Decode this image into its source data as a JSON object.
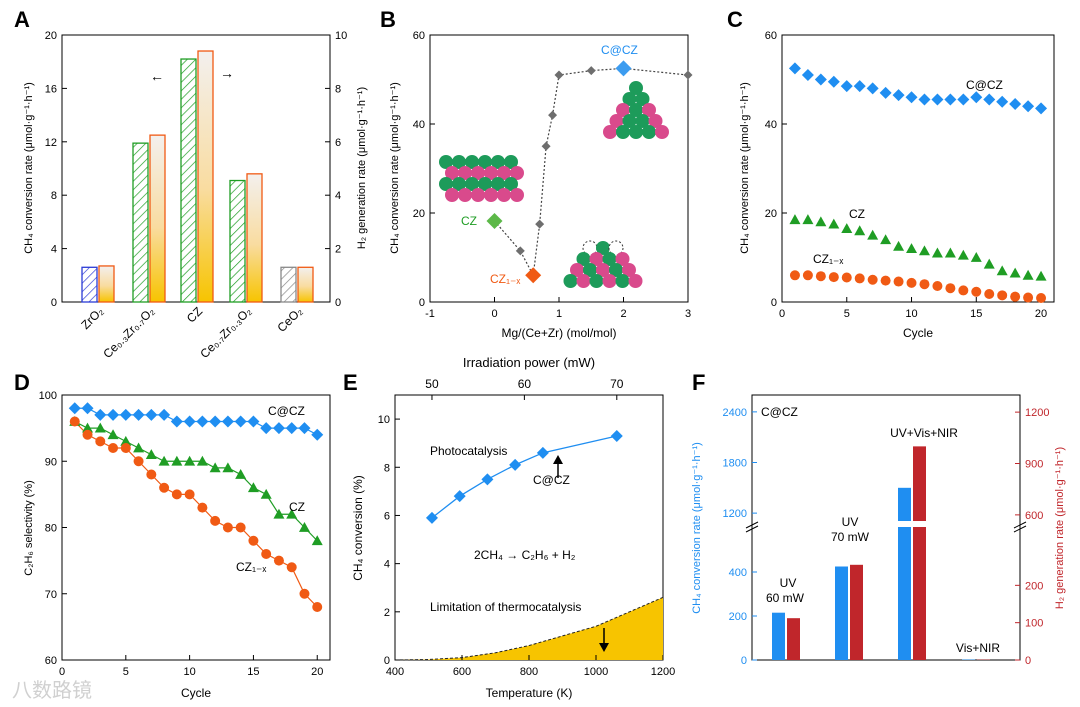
{
  "watermark": "八数路镜",
  "colors": {
    "blue": "#1f8ef1",
    "green": "#1f9d24",
    "orange": "#f05a14",
    "gray": "#6e6e6e",
    "darkred": "#c0262b",
    "gold": "#f7c400",
    "pink": "#d94a8c",
    "teal": "#1d9b5a"
  },
  "chart_data": [
    {
      "panel": "A",
      "type": "bar",
      "title": "",
      "categories": [
        "ZrO2",
        "Ce0.3Zr0.7O2",
        "CZ",
        "Ce0.7Zr0.3O2",
        "CeO2"
      ],
      "series": [
        {
          "name": "CH4 conversion rate",
          "axis": "left",
          "values": [
            2.6,
            11.9,
            18.2,
            9.1,
            2.6
          ]
        },
        {
          "name": "H2 generation rate",
          "axis": "right",
          "values": [
            1.35,
            6.25,
            9.4,
            4.8,
            1.3
          ]
        }
      ],
      "ylabel": "CH4 conversion rate (μmol·g-1·h-1)",
      "y2label": "H2 generation rate (μmol·g-1·h-1)",
      "ylim": [
        0,
        20
      ],
      "y2lim": [
        0,
        10
      ],
      "yticks": [
        "0",
        "4",
        "8",
        "12",
        "16",
        "20"
      ],
      "y2ticks": [
        "0",
        "2",
        "4",
        "6",
        "8",
        "10"
      ]
    },
    {
      "panel": "B",
      "type": "scatter",
      "xlabel": "Mg/(Ce+Zr) (mol/mol)",
      "ylabel": "CH4 conversion rate (μmol·g-1·h-1)",
      "xlim": [
        -1,
        3
      ],
      "ylim": [
        0,
        60
      ],
      "xticks": [
        "-1",
        "0",
        "1",
        "2",
        "3"
      ],
      "yticks": [
        "0",
        "20",
        "40",
        "60"
      ],
      "x": [
        0.4,
        0.7,
        0.8,
        0.9,
        1.0,
        1.5,
        3.0
      ],
      "y": [
        11.5,
        17.5,
        35.0,
        42.0,
        51.0,
        52.0,
        51.0
      ],
      "highlighted": [
        {
          "name": "CZ",
          "x": 0.0,
          "y": 18.2
        },
        {
          "name": "CZ1-x",
          "x": 0.6,
          "y": 6.0
        },
        {
          "name": "C@CZ",
          "x": 2.0,
          "y": 52.5
        }
      ]
    },
    {
      "panel": "C",
      "type": "scatter",
      "xlabel": "Cycle",
      "ylabel": "CH4 conversion rate (μmol·g-1·h-1)",
      "xlim": [
        0,
        21
      ],
      "ylim": [
        0,
        60
      ],
      "xticks": [
        "0",
        "5",
        "10",
        "15",
        "20"
      ],
      "yticks": [
        "0",
        "20",
        "40",
        "60"
      ],
      "x": [
        1,
        2,
        3,
        4,
        5,
        6,
        7,
        8,
        9,
        10,
        11,
        12,
        13,
        14,
        15,
        16,
        17,
        18,
        19,
        20
      ],
      "series": [
        {
          "name": "C@CZ",
          "values": [
            52.5,
            51,
            50,
            49.5,
            48.5,
            48.5,
            48,
            47,
            46.5,
            46,
            45.5,
            45.5,
            45.5,
            45.5,
            46,
            45.5,
            45,
            44.5,
            44,
            43.5
          ]
        },
        {
          "name": "CZ",
          "values": [
            18.5,
            18.5,
            18,
            17.5,
            16.5,
            16,
            15,
            14,
            12.5,
            12,
            11.5,
            11,
            11,
            10.5,
            10,
            8.5,
            7,
            6.5,
            6,
            5.8
          ]
        },
        {
          "name": "CZ1-x",
          "values": [
            6,
            6,
            5.8,
            5.6,
            5.5,
            5.3,
            5,
            4.8,
            4.6,
            4.3,
            4,
            3.6,
            3.1,
            2.6,
            2.3,
            1.8,
            1.5,
            1.2,
            1.0,
            0.9
          ]
        }
      ]
    },
    {
      "panel": "D",
      "type": "line",
      "xlabel": "Cycle",
      "ylabel": "C2H6 selectivity (%)",
      "xlim": [
        0,
        21
      ],
      "ylim": [
        60,
        100
      ],
      "xticks": [
        "0",
        "5",
        "10",
        "15",
        "20"
      ],
      "yticks": [
        "60",
        "70",
        "80",
        "90",
        "100"
      ],
      "x": [
        1,
        2,
        3,
        4,
        5,
        6,
        7,
        8,
        9,
        10,
        11,
        12,
        13,
        14,
        15,
        16,
        17,
        18,
        19,
        20
      ],
      "series": [
        {
          "name": "C@CZ",
          "values": [
            98,
            98,
            97,
            97,
            97,
            97,
            97,
            97,
            96,
            96,
            96,
            96,
            96,
            96,
            96,
            95,
            95,
            95,
            95,
            94
          ]
        },
        {
          "name": "CZ",
          "values": [
            96,
            95,
            95,
            94,
            93,
            92,
            91,
            90,
            90,
            90,
            90,
            89,
            89,
            88,
            86,
            85,
            82,
            82,
            80,
            78
          ]
        },
        {
          "name": "CZ1-x",
          "values": [
            96,
            94,
            93,
            92,
            92,
            90,
            88,
            86,
            85,
            85,
            83,
            81,
            80,
            80,
            78,
            76,
            75,
            74,
            70,
            68
          ]
        }
      ]
    },
    {
      "panel": "E",
      "type": "line",
      "xlabel": "Temperature (K)",
      "x2label": "Irradiation power (mW)",
      "ylabel": "CH4 conversion (%)",
      "xlim": [
        400,
        1200
      ],
      "x2lim": [
        46,
        75
      ],
      "ylim": [
        0,
        11
      ],
      "xticks": [
        "400",
        "600",
        "800",
        "1000",
        "1200"
      ],
      "x2ticks": [
        "50",
        "60",
        "70"
      ],
      "yticks": [
        "0",
        "2",
        "4",
        "6",
        "8",
        "10"
      ],
      "photocatalysis": {
        "x_power": [
          50,
          53,
          56,
          59,
          62,
          70
        ],
        "y": [
          5.9,
          6.8,
          7.5,
          8.1,
          8.6,
          9.3
        ]
      },
      "thermocatalysis_limit": {
        "x_temp": [
          400,
          500,
          600,
          700,
          800,
          900,
          1000,
          1100,
          1200
        ],
        "y": [
          0,
          0.02,
          0.1,
          0.3,
          0.6,
          1.0,
          1.4,
          2.0,
          2.6
        ]
      },
      "annotations": [
        "Photocatalysis",
        "C@CZ",
        "2CH4 → C2H6 + H2",
        "Limitation of thermocatalysis"
      ]
    },
    {
      "panel": "F",
      "type": "bar",
      "title": "C@CZ",
      "categories": [
        "UV 60 mW",
        "UV 70 mW",
        "UV+Vis+NIR",
        "Vis+NIR"
      ],
      "series": [
        {
          "name": "CH4 conversion rate",
          "axis": "left",
          "values": [
            215,
            425,
            1500,
            2
          ]
        },
        {
          "name": "H2 generation rate",
          "axis": "right",
          "values": [
            112,
            255,
            1000,
            1
          ]
        }
      ],
      "ylabel": "CH4 conversion rate (μmol·g-1·h-1)",
      "y2label": "H2 generation rate (μmol·g-1·h-1)",
      "ylim_lower": [
        0,
        500
      ],
      "ylim_upper": [
        1000,
        2600
      ],
      "y2lim_lower": [
        0,
        300
      ],
      "y2lim_upper": [
        500,
        1300
      ],
      "yticks": [
        "0",
        "200",
        "400",
        "1200",
        "1800",
        "2400"
      ],
      "y2ticks": [
        "0",
        "100",
        "200",
        "600",
        "900",
        "1200"
      ]
    }
  ],
  "labels": {
    "A": {
      "letter": "A",
      "ylabel": "CH₄ conversion rate (μmol·g⁻¹·h⁻¹)",
      "y2label": "H₂ generation rate (μmol·g⁻¹·h⁻¹)",
      "cats": [
        "ZrO₂",
        "Ce₀.₃Zr₀.₇O₂",
        "CZ",
        "Ce₀.₇Zr₀.₃O₂",
        "CeO₂"
      ],
      "arrow_left": "←",
      "arrow_right": "→"
    },
    "B": {
      "letter": "B",
      "xlabel": "Mg/(Ce+Zr) (mol/mol)",
      "ylabel": "CH₄ conversion rate (μmol·g⁻¹·h⁻¹)",
      "cz": "CZ",
      "czx": "CZ₁₋ₓ",
      "ccz": "C@CZ"
    },
    "C": {
      "letter": "C",
      "xlabel": "Cycle",
      "ylabel": "CH₄ conversion rate (μmol·g⁻¹·h⁻¹)",
      "ccz": "C@CZ",
      "cz": "CZ",
      "czx": "CZ₁₋ₓ"
    },
    "D": {
      "letter": "D",
      "xlabel": "Cycle",
      "ylabel": "C₂H₆ selectivity (%)",
      "ccz": "C@CZ",
      "cz": "CZ",
      "czx": "CZ₁₋ₓ"
    },
    "E": {
      "letter": "E",
      "xlabel": "Temperature (K)",
      "x2label": "Irradiation power (mW)",
      "ylabel": "CH₄ conversion (%)",
      "photo": "Photocatalysis",
      "ccz": "C@CZ",
      "reaction": "2CH₄ → C₂H₆ + H₂",
      "limit": "Limitation of thermocatalysis"
    },
    "F": {
      "letter": "F",
      "title": "C@CZ",
      "ylabel": "CH₄ conversion rate (μmol·g⁻¹·h⁻¹)",
      "y2label": "H₂ generation rate (μmol·g⁻¹·h⁻¹)",
      "uv1a": "UV",
      "uv1b": "60 mW",
      "uv2a": "UV",
      "uv2b": "70 mW",
      "uvvis": "UV+Vis+NIR",
      "visnir": "Vis+NIR"
    }
  }
}
